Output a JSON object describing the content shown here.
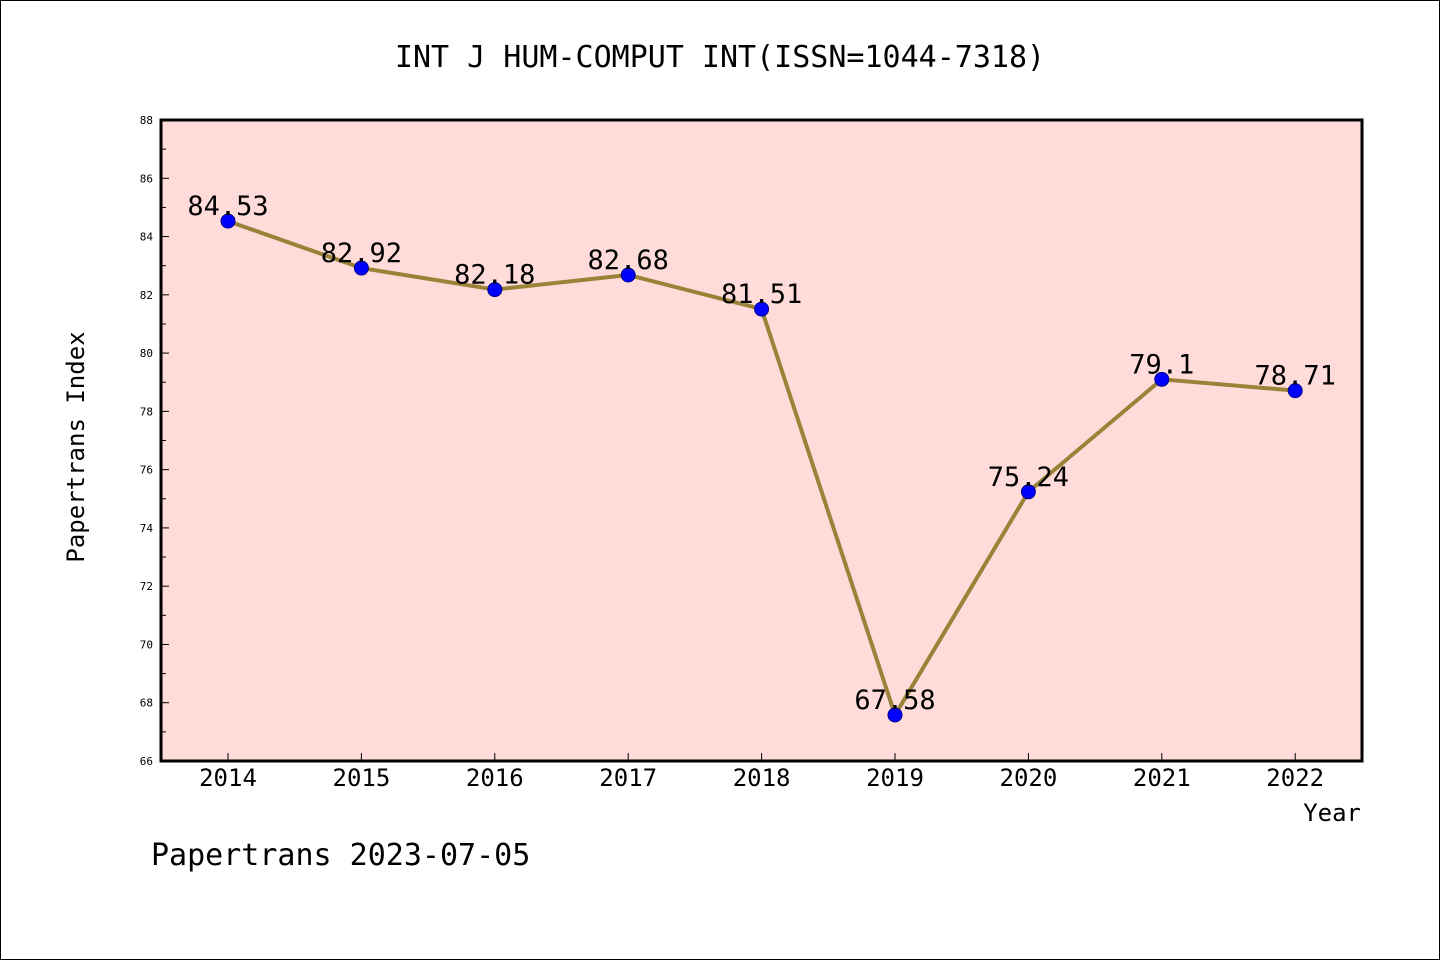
{
  "chart_data": {
    "type": "line",
    "title": "INT J HUM-COMPUT INT(ISSN=1044-7318)",
    "xlabel": "Year",
    "ylabel": "Papertrans Index",
    "categories": [
      "2014",
      "2015",
      "2016",
      "2017",
      "2018",
      "2019",
      "2020",
      "2021",
      "2022"
    ],
    "series": [
      {
        "values": [
          84.53,
          82.92,
          82.18,
          82.68,
          81.51,
          67.58,
          75.24,
          79.1,
          78.71
        ],
        "data_labels": [
          "84.53",
          "82.92",
          "82.18",
          "82.68",
          "81.51",
          "67.58",
          "75.24",
          "79.1",
          "78.71"
        ]
      }
    ],
    "ylim": [
      66,
      88
    ],
    "yticks": [
      "66",
      "68",
      "70",
      "72",
      "74",
      "76",
      "78",
      "80",
      "82",
      "84",
      "86",
      "88"
    ],
    "grid": false,
    "footer": "Papertrans 2023-07-05",
    "colors": {
      "plot_background": "#ffdcda",
      "line": "#9a8238",
      "marker": "#0000ff"
    }
  }
}
